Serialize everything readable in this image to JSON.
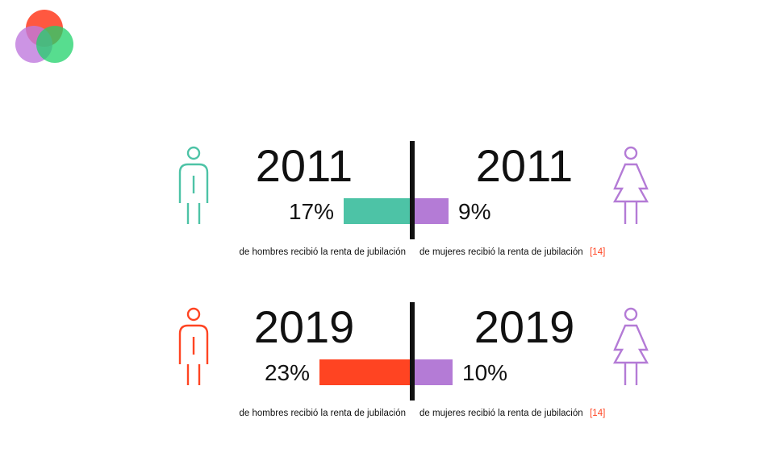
{
  "colors": {
    "men_2011": "#4dc3a6",
    "men_2019": "#ff4422",
    "women": "#b47bd6",
    "divider": "#111111",
    "reference": "#ff4422",
    "logo_red": "#ff3b1f",
    "logo_purple": "#bf79dd",
    "logo_green": "#1fd16a"
  },
  "icons": {
    "men": "man-icon",
    "women": "woman-icon",
    "logo": "venn-logo-icon"
  },
  "chart_data": {
    "type": "bar",
    "orientation": "diverging-horizontal",
    "rows": [
      {
        "year": "2011",
        "men": {
          "year_label": "2011",
          "value": 17,
          "label": "17%",
          "caption": "de hombres recibió la renta de jubilación"
        },
        "women": {
          "year_label": "2011",
          "value": 9,
          "label": "9%",
          "caption": "de mujeres recibió la renta de jubilación",
          "reference": "[14]"
        }
      },
      {
        "year": "2019",
        "men": {
          "year_label": "2019",
          "value": 23,
          "label": "23%",
          "caption": "de hombres recibió la renta de jubilación"
        },
        "women": {
          "year_label": "2019",
          "value": 10,
          "label": "10%",
          "caption": "de mujeres recibió la renta de jubilación",
          "reference": "[14]"
        }
      }
    ]
  }
}
